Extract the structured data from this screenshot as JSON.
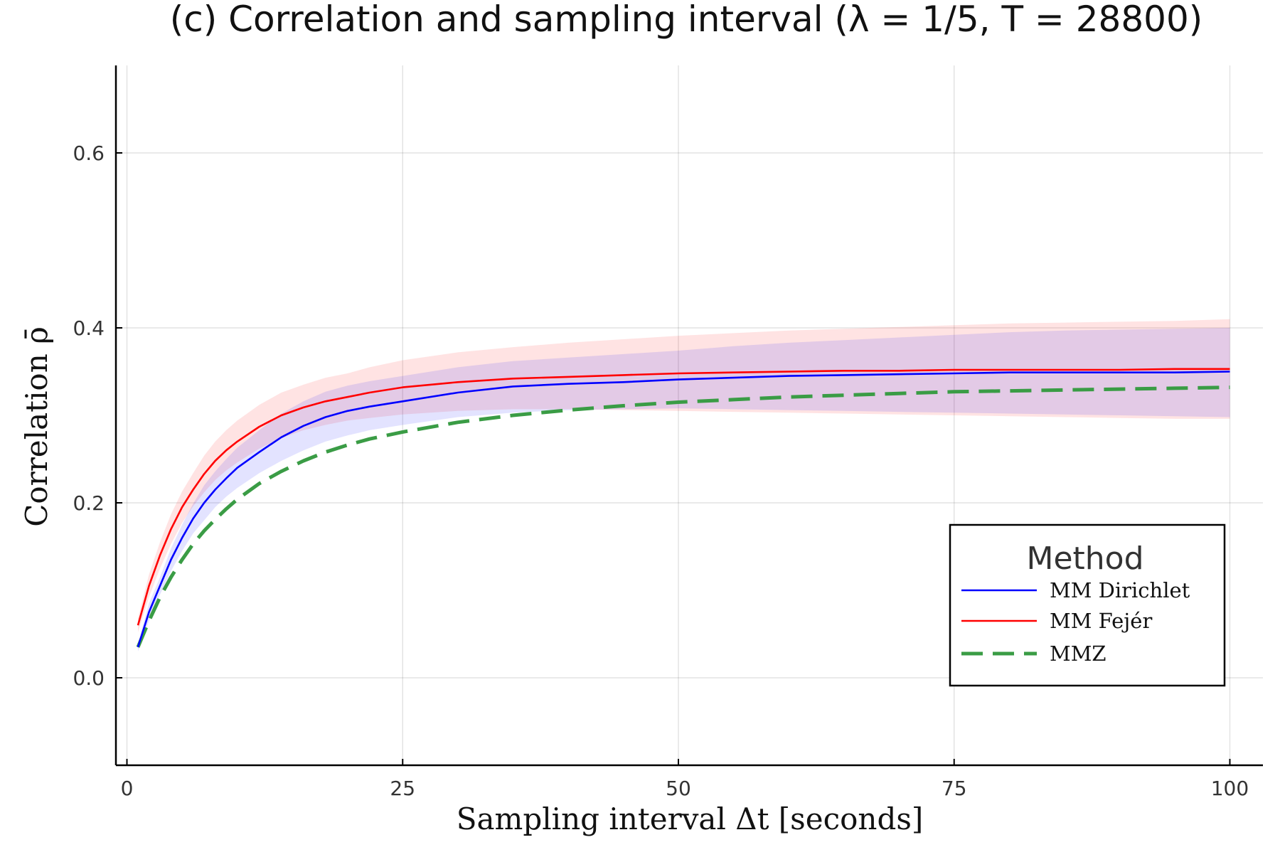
{
  "chart_data": {
    "type": "line",
    "title": "(c) Correlation and sampling interval (λ = 1/5, T = 28800)",
    "xlabel": "Sampling interval Δt [seconds]",
    "ylabel": "Correlation ρ̄",
    "xlim": [
      -1,
      103
    ],
    "ylim": [
      -0.1,
      0.7
    ],
    "xticks": [
      0,
      25,
      50,
      75,
      100
    ],
    "xtick_labels": [
      "0",
      "25",
      "50",
      "75",
      "100"
    ],
    "yticks": [
      0.0,
      0.2,
      0.4,
      0.6
    ],
    "ytick_labels": [
      "0.0",
      "0.2",
      "0.4",
      "0.6"
    ],
    "grid": true,
    "legend": {
      "title": "Method",
      "position": "bottom-right"
    },
    "x": [
      1,
      2,
      3,
      4,
      5,
      6,
      7,
      8,
      9,
      10,
      12,
      14,
      16,
      18,
      20,
      22,
      25,
      30,
      35,
      40,
      45,
      50,
      55,
      60,
      65,
      70,
      75,
      80,
      85,
      90,
      95,
      100
    ],
    "series": [
      {
        "name": "MM Dirichlet",
        "color": "#0000ff",
        "style": "solid",
        "values": [
          0.035,
          0.075,
          0.105,
          0.135,
          0.16,
          0.182,
          0.2,
          0.215,
          0.228,
          0.24,
          0.258,
          0.275,
          0.288,
          0.298,
          0.305,
          0.31,
          0.316,
          0.326,
          0.333,
          0.336,
          0.338,
          0.341,
          0.343,
          0.345,
          0.346,
          0.347,
          0.348,
          0.349,
          0.349,
          0.349,
          0.349,
          0.35
        ],
        "band_lower": [
          0.03,
          0.065,
          0.095,
          0.122,
          0.145,
          0.165,
          0.18,
          0.195,
          0.207,
          0.217,
          0.234,
          0.248,
          0.26,
          0.27,
          0.277,
          0.283,
          0.289,
          0.298,
          0.303,
          0.306,
          0.307,
          0.308,
          0.307,
          0.306,
          0.305,
          0.304,
          0.303,
          0.302,
          0.301,
          0.3,
          0.299,
          0.298
        ],
        "band_upper": [
          0.04,
          0.085,
          0.115,
          0.148,
          0.175,
          0.199,
          0.22,
          0.236,
          0.25,
          0.263,
          0.283,
          0.302,
          0.316,
          0.327,
          0.334,
          0.339,
          0.345,
          0.355,
          0.362,
          0.366,
          0.37,
          0.374,
          0.379,
          0.383,
          0.386,
          0.389,
          0.392,
          0.395,
          0.397,
          0.398,
          0.399,
          0.4
        ]
      },
      {
        "name": "MM Fejér",
        "color": "#ff0000",
        "style": "solid",
        "values": [
          0.06,
          0.105,
          0.14,
          0.17,
          0.195,
          0.215,
          0.233,
          0.248,
          0.26,
          0.27,
          0.287,
          0.3,
          0.309,
          0.316,
          0.321,
          0.326,
          0.332,
          0.338,
          0.342,
          0.344,
          0.346,
          0.348,
          0.349,
          0.35,
          0.351,
          0.351,
          0.352,
          0.352,
          0.352,
          0.352,
          0.353,
          0.353
        ],
        "band_lower": [
          0.052,
          0.092,
          0.125,
          0.153,
          0.177,
          0.196,
          0.212,
          0.226,
          0.237,
          0.246,
          0.262,
          0.274,
          0.283,
          0.289,
          0.294,
          0.297,
          0.301,
          0.305,
          0.307,
          0.307,
          0.306,
          0.305,
          0.304,
          0.303,
          0.302,
          0.301,
          0.3,
          0.299,
          0.298,
          0.297,
          0.296,
          0.296
        ],
        "band_upper": [
          0.068,
          0.118,
          0.155,
          0.187,
          0.213,
          0.234,
          0.254,
          0.27,
          0.283,
          0.294,
          0.312,
          0.326,
          0.335,
          0.343,
          0.348,
          0.355,
          0.363,
          0.372,
          0.378,
          0.383,
          0.387,
          0.391,
          0.394,
          0.397,
          0.399,
          0.401,
          0.403,
          0.405,
          0.406,
          0.407,
          0.408,
          0.41
        ]
      },
      {
        "name": "MMZ",
        "color": "#3a9c45",
        "style": "dashed",
        "values": [
          0.035,
          0.065,
          0.092,
          0.115,
          0.135,
          0.153,
          0.168,
          0.181,
          0.193,
          0.204,
          0.222,
          0.236,
          0.248,
          0.258,
          0.266,
          0.273,
          0.281,
          0.292,
          0.3,
          0.306,
          0.311,
          0.315,
          0.318,
          0.321,
          0.323,
          0.325,
          0.327,
          0.328,
          0.329,
          0.33,
          0.331,
          0.332
        ]
      }
    ]
  }
}
